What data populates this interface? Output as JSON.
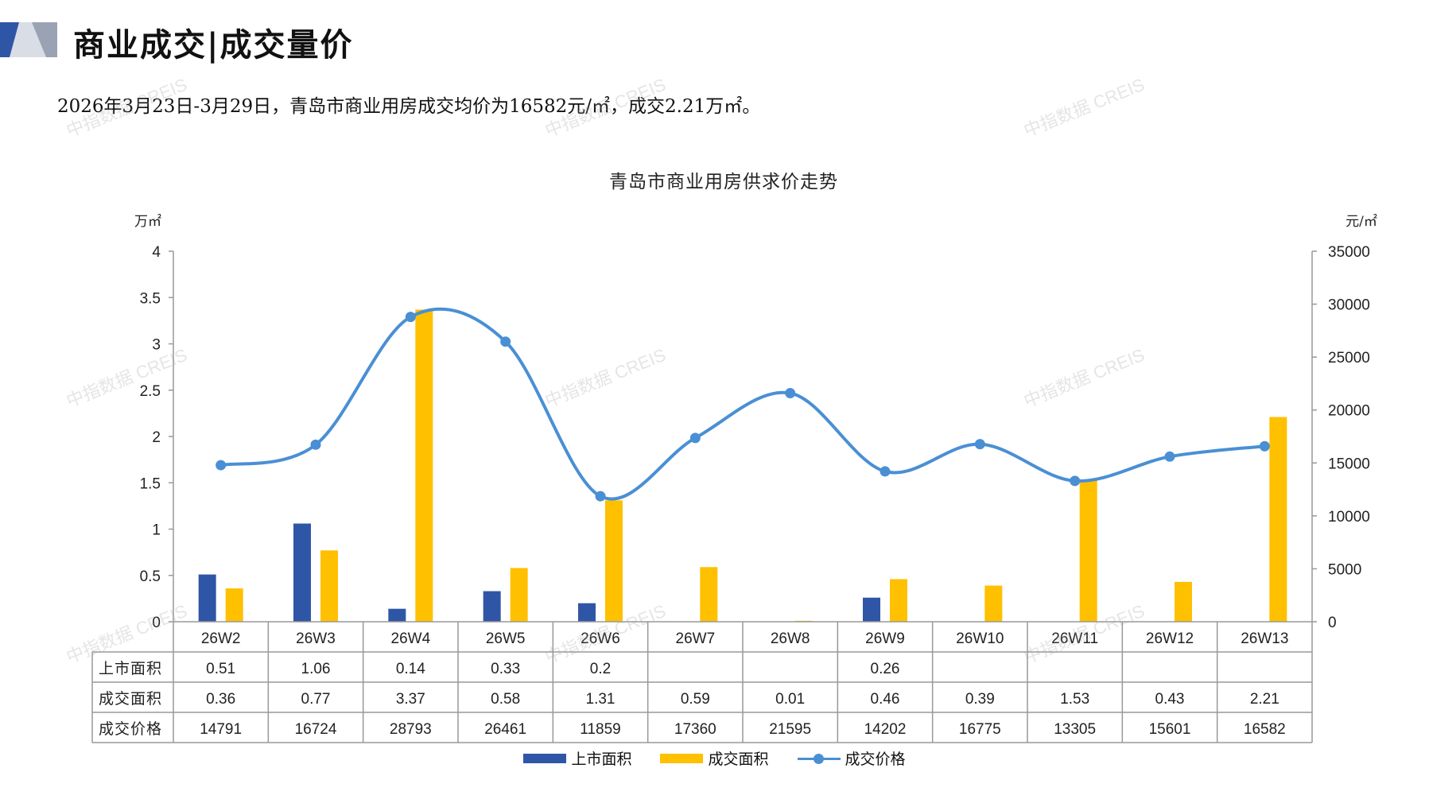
{
  "header": {
    "title": "商业成交|成交量价",
    "summary": "2026年3月23日-3月29日，青岛市商业用房成交均价为16582元/㎡，成交2.21万㎡。"
  },
  "watermark_text": "中指数据 CREIS",
  "colors": {
    "supply": "#2f56a6",
    "sales": "#ffc000",
    "price": "#4a8fd4",
    "grid": "#999999"
  },
  "chart_data": {
    "type": "bar",
    "title": "青岛市商业用房供求价走势",
    "left_unit": "万㎡",
    "right_unit": "元/㎡",
    "categories": [
      "26W2",
      "26W3",
      "26W4",
      "26W5",
      "26W6",
      "26W7",
      "26W8",
      "26W9",
      "26W10",
      "26W11",
      "26W12",
      "26W13"
    ],
    "series": [
      {
        "name": "上市面积",
        "type": "bar",
        "axis": "left",
        "values": [
          0.51,
          1.06,
          0.14,
          0.33,
          0.2,
          null,
          null,
          0.26,
          null,
          null,
          null,
          null
        ]
      },
      {
        "name": "成交面积",
        "type": "bar",
        "axis": "left",
        "values": [
          0.36,
          0.77,
          3.37,
          0.58,
          1.31,
          0.59,
          0.01,
          0.46,
          0.39,
          1.53,
          0.43,
          2.21
        ]
      },
      {
        "name": "成交价格",
        "type": "line",
        "axis": "right",
        "values": [
          14791,
          16724,
          28793,
          26461,
          11859,
          17360,
          21595,
          14202,
          16775,
          13305,
          15601,
          16582
        ]
      }
    ],
    "table_labels": {
      "上市面积": [
        "0.51",
        "1.06",
        "0.14",
        "0.33",
        "0.2",
        "",
        "",
        "0.26",
        "",
        "",
        "",
        ""
      ],
      "成交面积": [
        "0.36",
        "0.77",
        "3.37",
        "0.58",
        "1.31",
        "0.59",
        "0.01",
        "0.46",
        "0.39",
        "1.53",
        "0.43",
        "2.21"
      ],
      "成交价格": [
        "14791",
        "16724",
        "28793",
        "26461",
        "11859",
        "17360",
        "21595",
        "14202",
        "16775",
        "13305",
        "15601",
        "16582"
      ]
    },
    "left_axis": {
      "min": 0,
      "max": 4,
      "ticks": [
        "0",
        "0.5",
        "1",
        "1.5",
        "2",
        "2.5",
        "3",
        "3.5",
        "4"
      ]
    },
    "right_axis": {
      "min": 0,
      "max": 35000,
      "ticks": [
        "0",
        "5000",
        "10000",
        "15000",
        "20000",
        "25000",
        "30000",
        "35000"
      ]
    },
    "legend_position": "bottom",
    "grid": false
  }
}
